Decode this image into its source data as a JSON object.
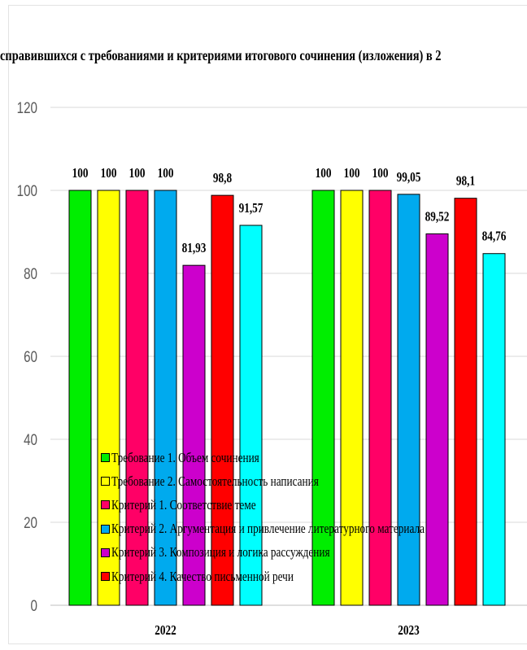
{
  "chart_data": {
    "type": "bar",
    "title": "справившихся с требованиями и критериями итогового сочинения (изложения) в 2",
    "categories": [
      "2022",
      "2023"
    ],
    "ylim": [
      0,
      120
    ],
    "yticks": [
      "0",
      "20",
      "40",
      "60",
      "80",
      "100",
      "120"
    ],
    "grid": true,
    "legend_position": "bottom-left, overlaid on plot",
    "series": [
      {
        "name": "Требование 1. Объем сочинения",
        "color": "#00ee00",
        "values": [
          100,
          100
        ],
        "labels": [
          "100",
          "100"
        ]
      },
      {
        "name": "Требование 2. Самостоятельность написания",
        "color": "#ffff00",
        "values": [
          100,
          100
        ],
        "labels": [
          "100",
          "100"
        ]
      },
      {
        "name": "Критерий 1. Соответствие теме",
        "color": "#ff0066",
        "values": [
          100,
          100
        ],
        "labels": [
          "100",
          "100"
        ]
      },
      {
        "name": "Критерий 2. Аргументация и привлечение литературного материала",
        "color": "#00aaee",
        "values": [
          100,
          99.05
        ],
        "labels": [
          "100",
          "99,05"
        ]
      },
      {
        "name": "Критерий 3. Композиция и логика рассуждения",
        "color": "#cc00cc",
        "values": [
          81.93,
          89.52
        ],
        "labels": [
          "81,93",
          "89,52"
        ]
      },
      {
        "name": "Критерий 4. Качество письменной речи",
        "color": "#ff0000",
        "values": [
          98.8,
          98.1
        ],
        "labels": [
          "98,8",
          "98,1"
        ]
      },
      {
        "name": "",
        "color": "#00ffff",
        "values": [
          91.57,
          84.76
        ],
        "labels": [
          "91,57",
          "84,76"
        ]
      }
    ]
  }
}
